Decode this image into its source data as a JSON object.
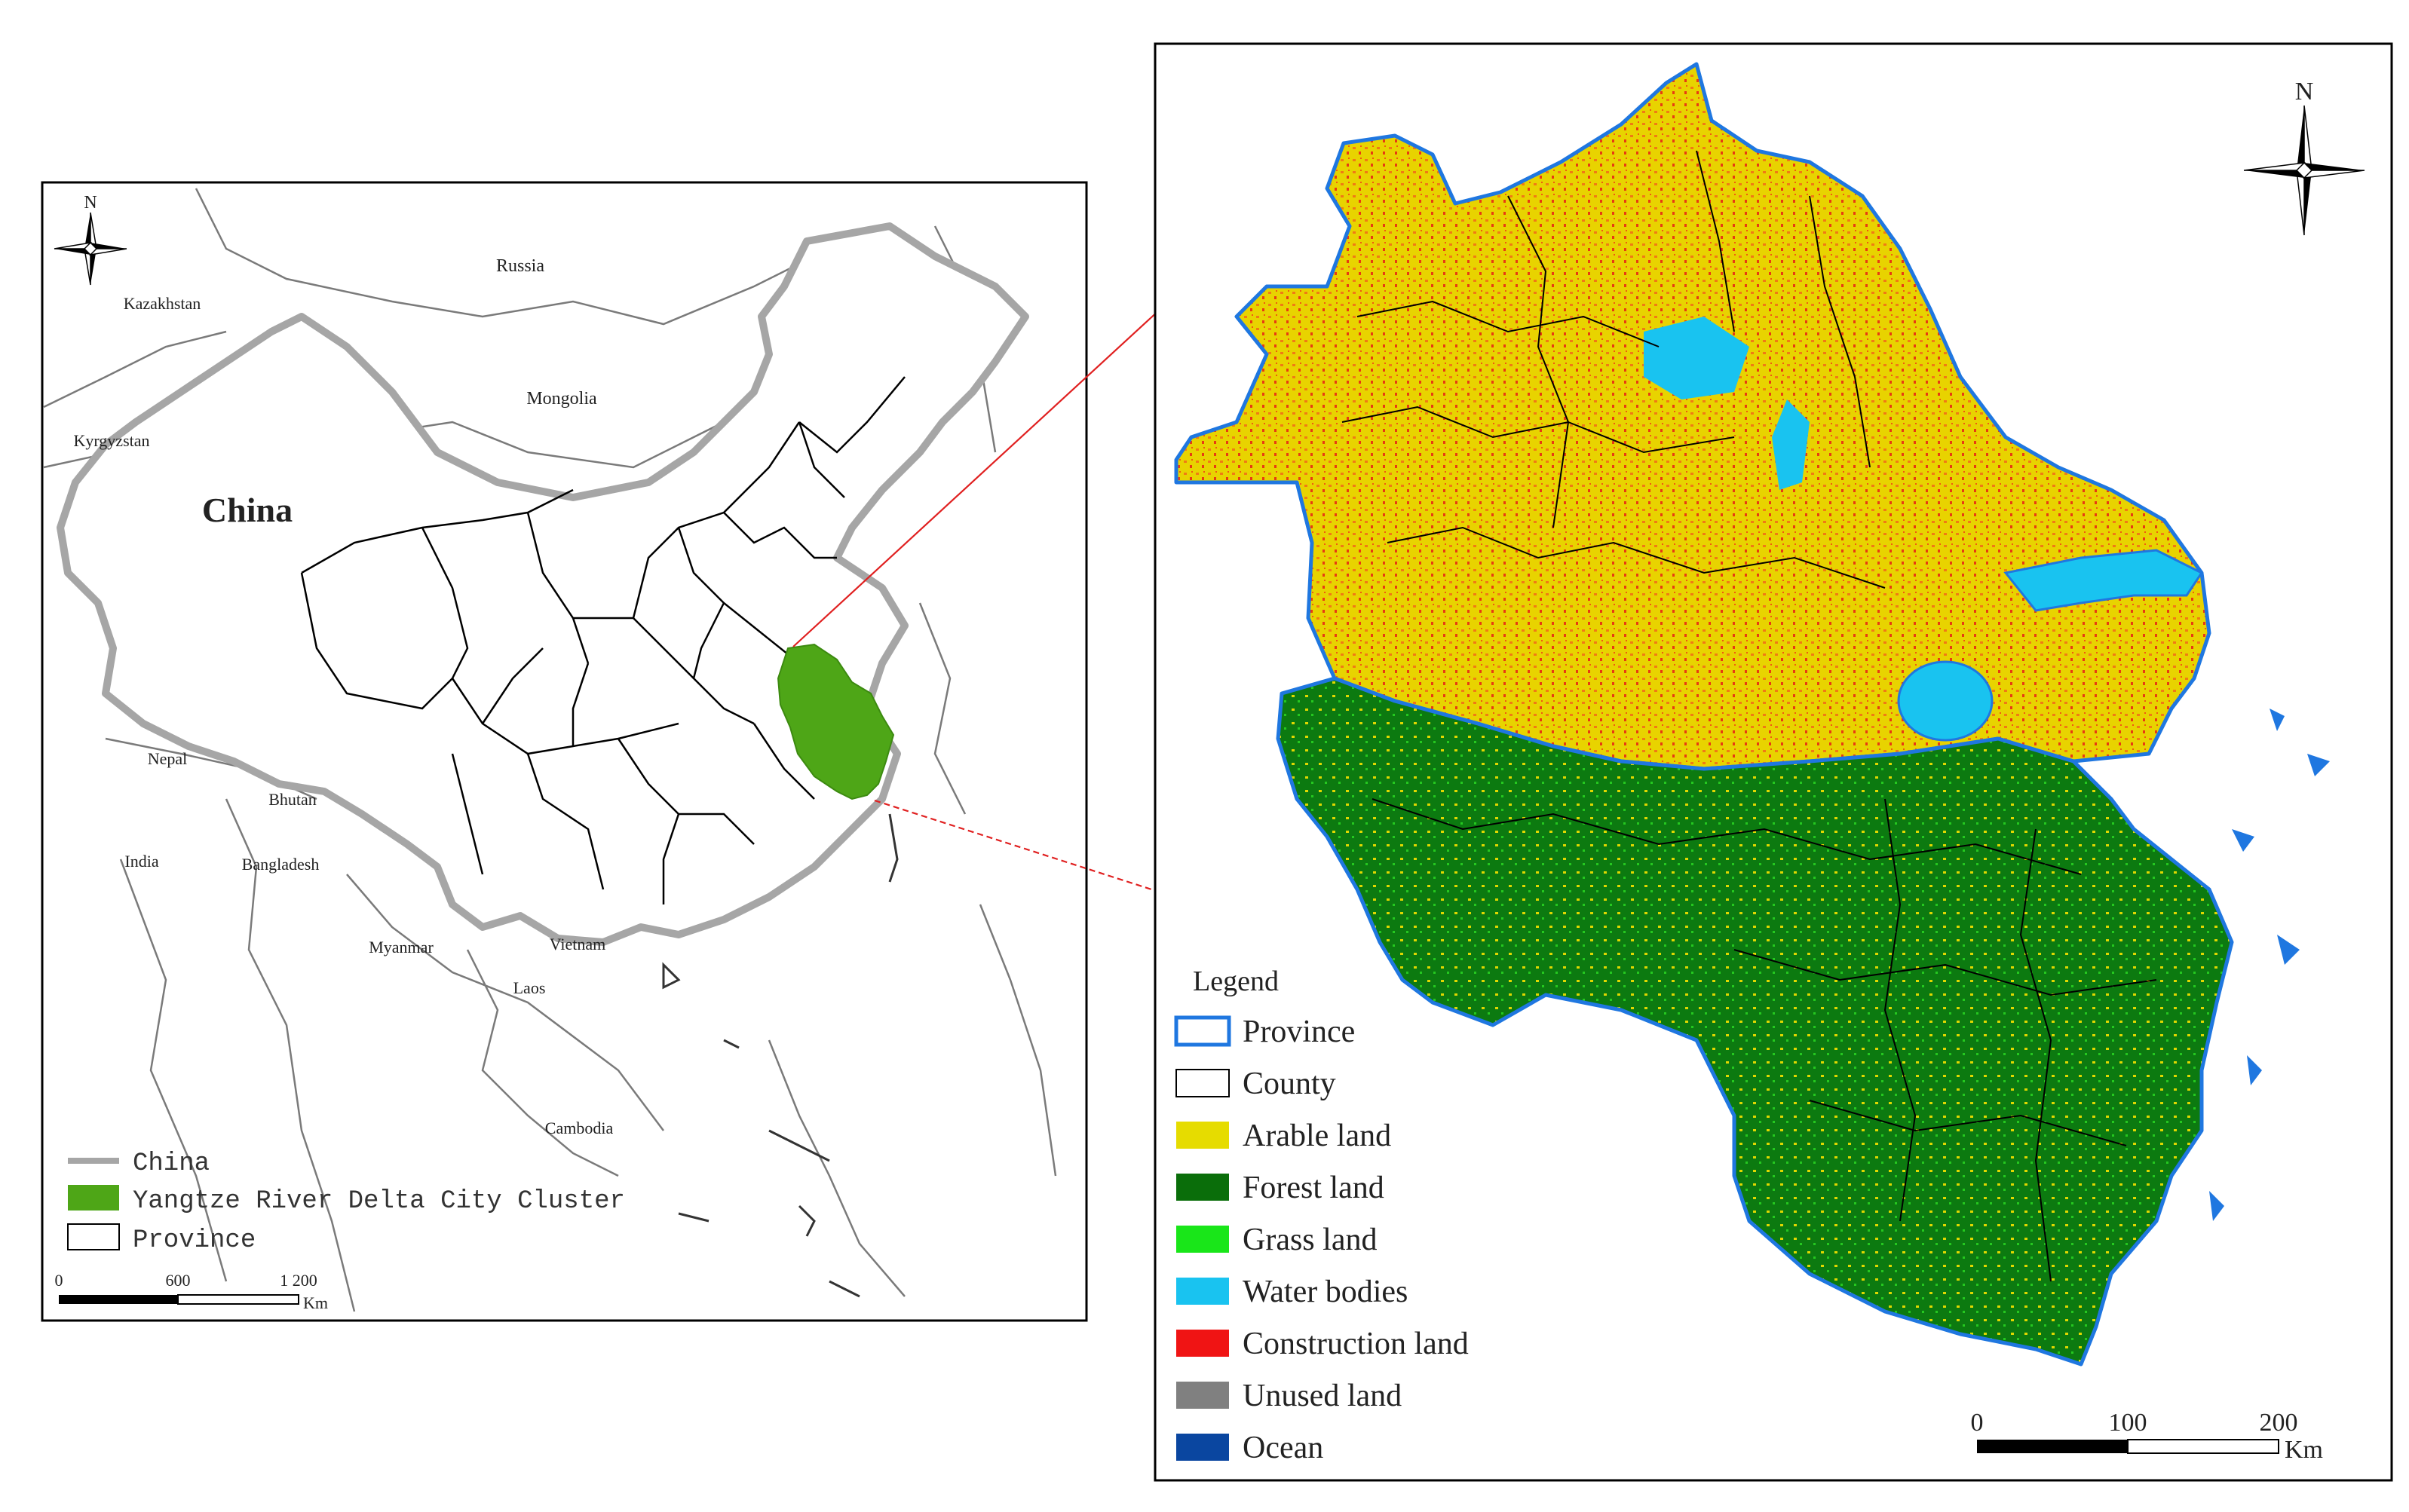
{
  "left_map": {
    "labels": {
      "russia": "Russia",
      "kazakhstan": "Kazakhstan",
      "mongolia": "Mongolia",
      "kyrgyzstan": "Kyrgyzstan",
      "china": "China",
      "nepal": "Nepal",
      "bhutan": "Bhutan",
      "india": "India",
      "bangladesh": "Bangladesh",
      "myanmar": "Myanmar",
      "vietnam": "Vietnam",
      "laos": "Laos",
      "cambodia": "Cambodia"
    },
    "north_label": "N",
    "legend": [
      {
        "label": "China",
        "symbol": "line",
        "color": "#a6a6a6"
      },
      {
        "label": "Yangtze River Delta City Cluster",
        "symbol": "fill",
        "color": "#4ea617"
      },
      {
        "label": "Province",
        "symbol": "box",
        "color": "#000000"
      }
    ],
    "scale": {
      "ticks": [
        "0",
        "600",
        "1 200"
      ],
      "unit": "Km"
    },
    "colors": {
      "china_border": "#a6a6a6",
      "highlight": "#4ea617"
    }
  },
  "right_map": {
    "north_label": "N",
    "legend_title": "Legend",
    "legend": [
      {
        "label": "Province",
        "kind": "outline",
        "color": "#1f77e0"
      },
      {
        "label": "County",
        "kind": "outline",
        "color": "#000000"
      },
      {
        "label": "Arable land",
        "kind": "fill",
        "color": "#e6dc00"
      },
      {
        "label": "Forest land",
        "kind": "fill",
        "color": "#0a6e0a"
      },
      {
        "label": "Grass land",
        "kind": "fill",
        "color": "#19e619"
      },
      {
        "label": "Water bodies",
        "kind": "fill",
        "color": "#19c3f0"
      },
      {
        "label": "Construction land",
        "kind": "fill",
        "color": "#f01414"
      },
      {
        "label": "Unused land",
        "kind": "fill",
        "color": "#808080"
      },
      {
        "label": "Ocean",
        "kind": "fill",
        "color": "#0a46a0"
      }
    ],
    "scale": {
      "ticks": [
        "0",
        "100",
        "200"
      ],
      "unit": "Km"
    }
  }
}
